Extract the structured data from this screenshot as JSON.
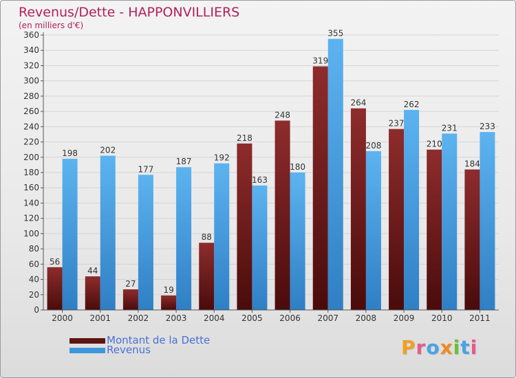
{
  "title": "Revenus/Dette - HAPPONVILLIERS",
  "unit_note": "(en milliers d'€)",
  "legend": {
    "debt": "Montant de la Dette",
    "revenue": "Revenus"
  },
  "logo": "Proxiti",
  "colors": {
    "debt": "#7a1f1f",
    "revenue": "#4aa3e6",
    "title": "#b0205a",
    "legend_text": "#4a6fd8"
  },
  "chart_data": {
    "type": "bar",
    "categories": [
      "2000",
      "2001",
      "2002",
      "2003",
      "2004",
      "2005",
      "2006",
      "2007",
      "2008",
      "2009",
      "2010",
      "2011"
    ],
    "series": [
      {
        "name": "Montant de la Dette",
        "values": [
          56,
          44,
          27,
          19,
          88,
          218,
          248,
          319,
          264,
          237,
          210,
          184
        ]
      },
      {
        "name": "Revenus",
        "values": [
          198,
          202,
          177,
          187,
          192,
          163,
          180,
          355,
          208,
          262,
          231,
          233
        ]
      }
    ],
    "ylim": [
      0,
      360
    ],
    "yticks": [
      0,
      20,
      40,
      60,
      80,
      100,
      120,
      140,
      160,
      180,
      200,
      220,
      240,
      260,
      280,
      300,
      320,
      340,
      360
    ],
    "grid": true,
    "legend_position": "bottom-left"
  }
}
